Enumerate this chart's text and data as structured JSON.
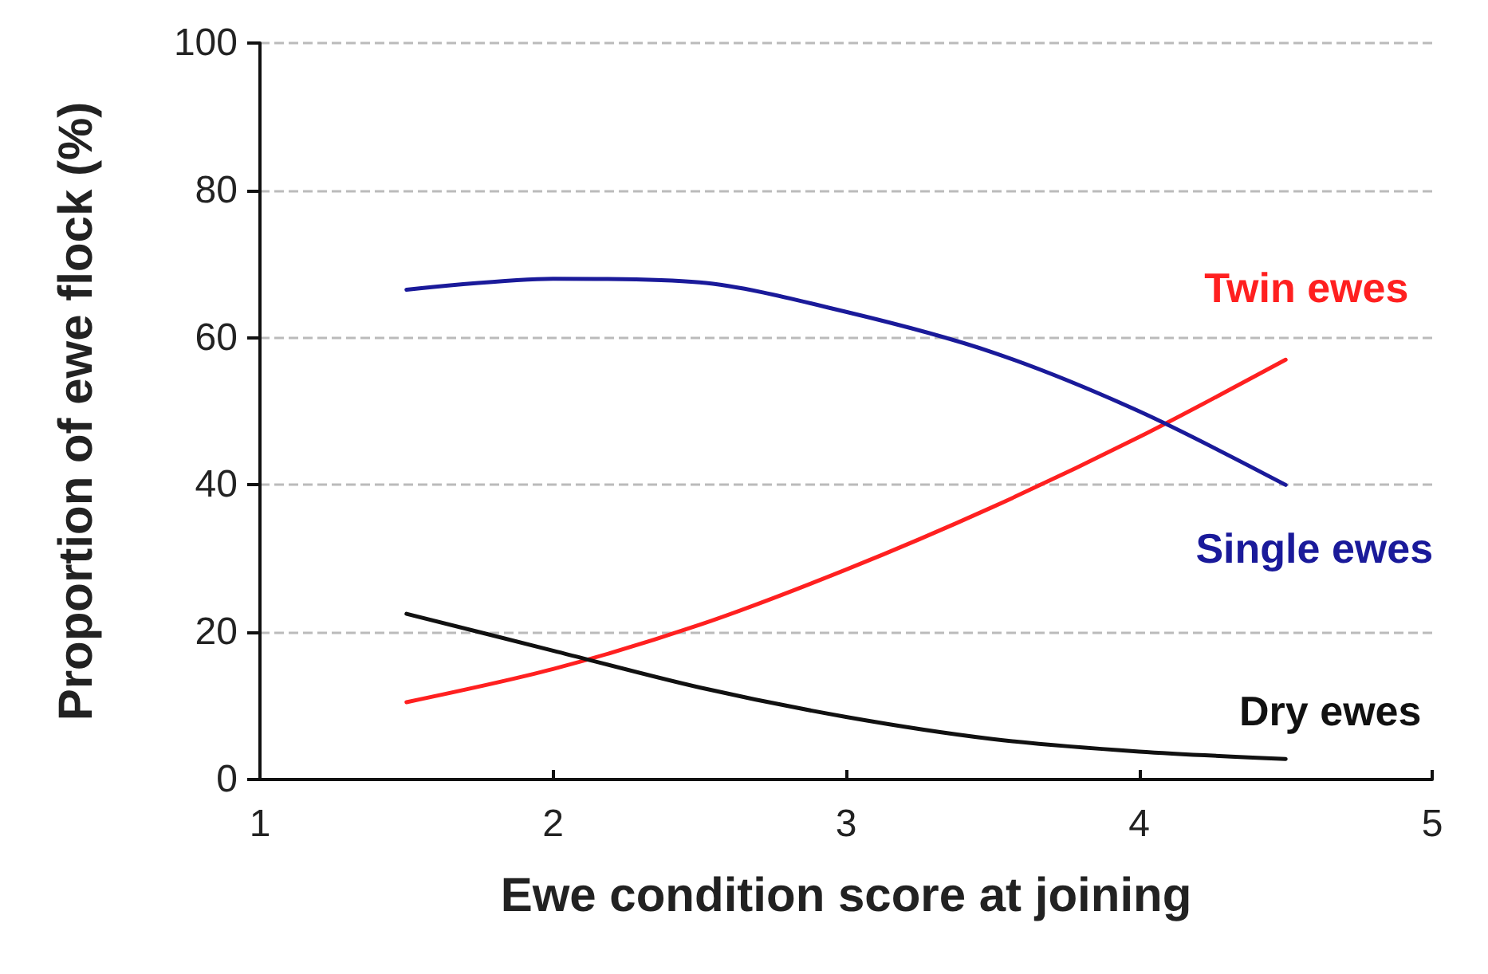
{
  "chart_data": {
    "type": "line",
    "xlabel": "Ewe condition score at joining",
    "ylabel": "Proportion of ewe flock (%)",
    "x": [
      1.5,
      2,
      2.5,
      3,
      3.5,
      4,
      4.5
    ],
    "series": [
      {
        "name": "Twin ewes",
        "color": "#ff2020",
        "values": [
          10.5,
          15,
          21,
          28.5,
          37,
          46.5,
          57
        ]
      },
      {
        "name": "Single ewes",
        "color": "#1a1a9a",
        "values": [
          66.5,
          68,
          67.5,
          63.5,
          58,
          50,
          40
        ]
      },
      {
        "name": "Dry ewes",
        "color": "#111111",
        "values": [
          22.5,
          17.5,
          12.5,
          8.5,
          5.5,
          3.8,
          2.8
        ]
      }
    ],
    "xlim": [
      1,
      5
    ],
    "xticks": [
      1,
      2,
      3,
      4,
      5
    ],
    "ylim": [
      0,
      100
    ],
    "yticks": [
      0,
      20,
      40,
      60,
      80,
      100
    ],
    "grid": "y",
    "legend": false,
    "marker": "none",
    "line_style": "solid"
  }
}
